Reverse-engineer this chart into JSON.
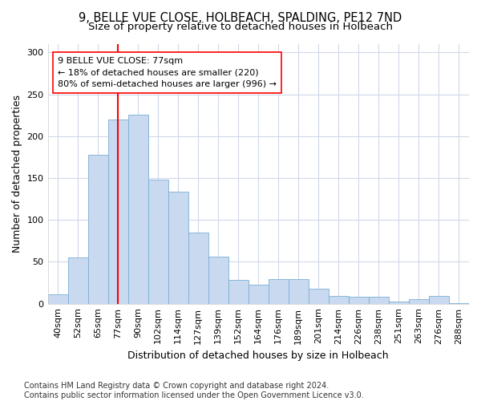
{
  "title_line1": "9, BELLE VUE CLOSE, HOLBEACH, SPALDING, PE12 7ND",
  "title_line2": "Size of property relative to detached houses in Holbeach",
  "xlabel": "Distribution of detached houses by size in Holbeach",
  "ylabel": "Number of detached properties",
  "bar_labels": [
    "40sqm",
    "52sqm",
    "65sqm",
    "77sqm",
    "90sqm",
    "102sqm",
    "114sqm",
    "127sqm",
    "139sqm",
    "152sqm",
    "164sqm",
    "176sqm",
    "189sqm",
    "201sqm",
    "214sqm",
    "226sqm",
    "238sqm",
    "251sqm",
    "263sqm",
    "276sqm",
    "288sqm"
  ],
  "bar_heights": [
    11,
    55,
    178,
    220,
    226,
    148,
    134,
    85,
    56,
    28,
    23,
    29,
    29,
    18,
    9,
    8,
    8,
    3,
    5,
    9,
    1
  ],
  "bar_color": "#c9d9f0",
  "bar_edgecolor": "#7bafd4",
  "vline_x_index": 3,
  "vline_color": "red",
  "annotation_text": "9 BELLE VUE CLOSE: 77sqm\n← 18% of detached houses are smaller (220)\n80% of semi-detached houses are larger (996) →",
  "annotation_box_color": "white",
  "annotation_box_edgecolor": "red",
  "ylim": [
    0,
    310
  ],
  "yticks": [
    0,
    50,
    100,
    150,
    200,
    250,
    300
  ],
  "footnote": "Contains HM Land Registry data © Crown copyright and database right 2024.\nContains public sector information licensed under the Open Government Licence v3.0.",
  "bg_color": "#ffffff",
  "plot_bg_color": "#ffffff",
  "grid_color": "#d0d8e8",
  "title_fontsize": 10.5,
  "subtitle_fontsize": 9.5,
  "axis_label_fontsize": 9,
  "tick_fontsize": 8,
  "annotation_fontsize": 8,
  "footnote_fontsize": 7
}
